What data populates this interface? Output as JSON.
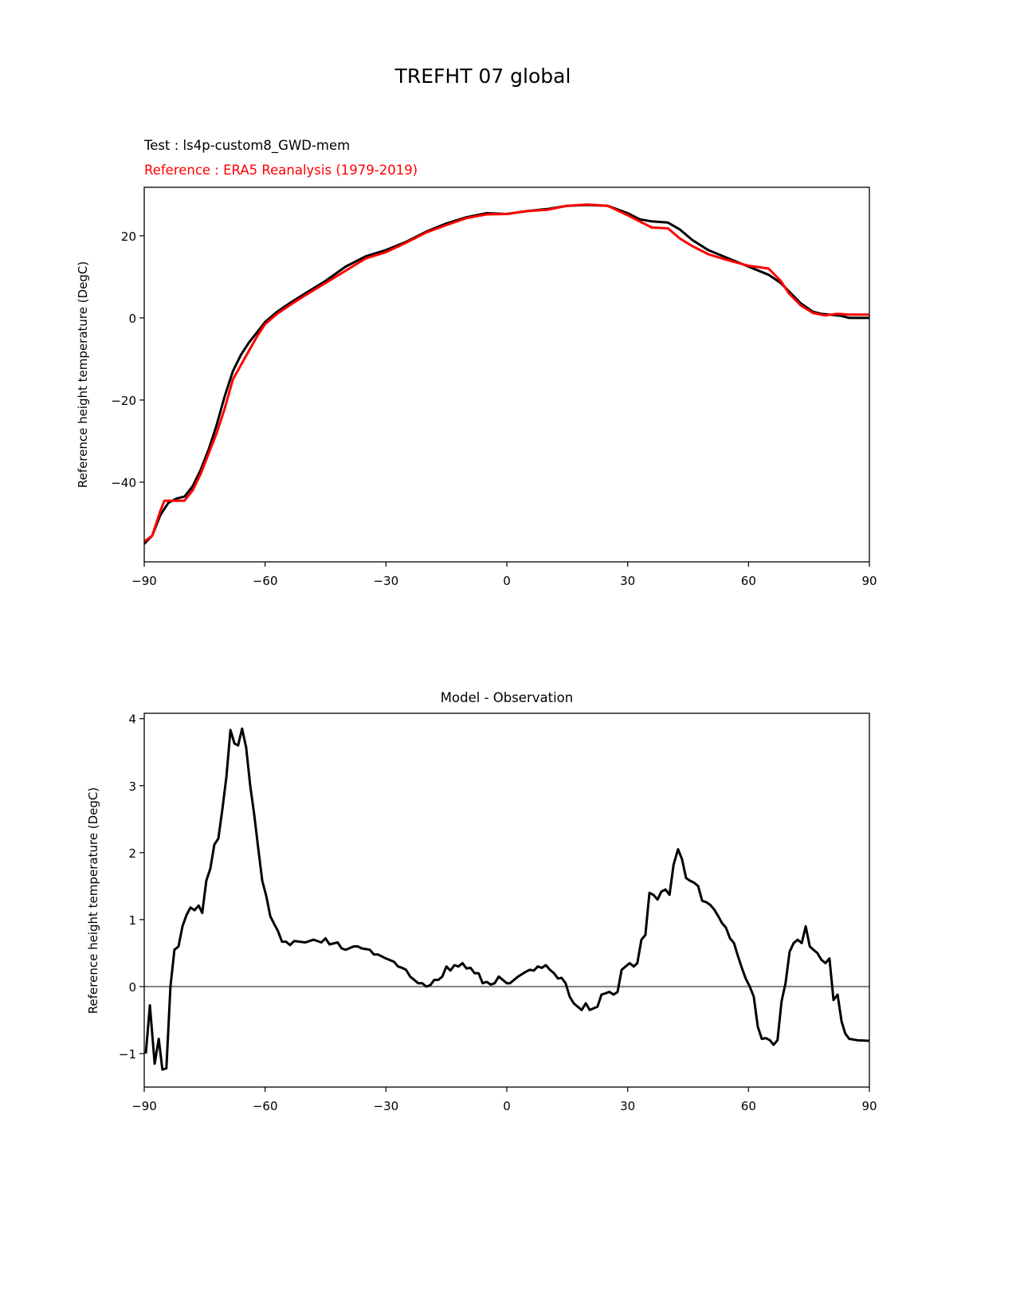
{
  "chart_data": [
    {
      "type": "line",
      "suptitle": "TREFHT 07 global",
      "title_left_test": "Test : ls4p-custom8_GWD-mem",
      "title_left_reference": "Reference : ERA5 Reanalysis (1979-2019)",
      "xlabel": "",
      "ylabel": "Reference height temperature (DegC)",
      "xlim": [
        -90,
        90
      ],
      "ylim": [
        -59.4,
        31.8
      ],
      "xticks": [
        -90,
        -60,
        -30,
        0,
        30,
        60,
        90
      ],
      "xtick_labels": [
        "−90",
        "−60",
        "−30",
        "0",
        "30",
        "60",
        "90"
      ],
      "yticks": [
        -40,
        -20,
        0,
        20
      ],
      "ytick_labels": [
        "−40",
        "−20",
        "0",
        "20"
      ],
      "series": [
        {
          "name": "Test",
          "color": "#000000",
          "x": [
            -90,
            -88,
            -86,
            -84,
            -82,
            -80,
            -78,
            -76,
            -74,
            -72,
            -70,
            -68,
            -66,
            -64,
            -62,
            -60,
            -57,
            -54,
            -50,
            -45,
            -40,
            -35,
            -30,
            -25,
            -20,
            -15,
            -10,
            -5,
            0,
            5,
            10,
            15,
            20,
            25,
            30,
            33,
            36,
            40,
            43,
            46,
            50,
            55,
            60,
            65,
            68,
            70,
            73,
            76,
            78,
            80,
            83,
            85,
            90
          ],
          "y": [
            -55,
            -53,
            -48,
            -45,
            -44,
            -43.5,
            -41,
            -37,
            -32,
            -26,
            -19,
            -13,
            -9,
            -6,
            -3.5,
            -1,
            1.5,
            3.5,
            6,
            9,
            12.5,
            15,
            16.5,
            18.5,
            21,
            23,
            24.5,
            25.5,
            25.3,
            26,
            26.5,
            27.3,
            27.5,
            27.3,
            25.5,
            24,
            23.5,
            23.2,
            21.5,
            19,
            16.5,
            14.5,
            12.5,
            10.5,
            8.5,
            6.5,
            3.5,
            1.5,
            1,
            0.8,
            0.5,
            0,
            0
          ]
        },
        {
          "name": "Reference",
          "color": "#ff0000",
          "x": [
            -90,
            -88,
            -86,
            -85,
            -83,
            -80,
            -78,
            -76,
            -74,
            -72,
            -70,
            -68,
            -66,
            -64,
            -62,
            -60,
            -57,
            -54,
            -50,
            -45,
            -40,
            -35,
            -30,
            -25,
            -20,
            -15,
            -10,
            -5,
            0,
            5,
            10,
            15,
            20,
            25,
            30,
            33,
            36,
            40,
            43,
            46,
            50,
            55,
            60,
            65,
            68,
            70,
            73,
            76,
            79,
            82,
            85,
            90
          ],
          "y": [
            -54.5,
            -53,
            -47,
            -44.5,
            -44.5,
            -44.5,
            -42,
            -38,
            -33,
            -28,
            -22,
            -15,
            -11.5,
            -8,
            -4.5,
            -1.5,
            1,
            3,
            5.5,
            8.5,
            11.5,
            14.5,
            16,
            18.3,
            20.8,
            22.6,
            24.3,
            25.2,
            25.3,
            26,
            26.3,
            27.3,
            27.6,
            27.3,
            25,
            23.5,
            22,
            21.8,
            19.3,
            17.5,
            15.5,
            14,
            12.7,
            12,
            9,
            6,
            3,
            1.2,
            0.6,
            1,
            0.8,
            0.8
          ]
        }
      ]
    },
    {
      "type": "line",
      "title": "Model - Observation",
      "xlabel": "",
      "ylabel": "Reference height temperature (DegC)",
      "xlim": [
        -90,
        90
      ],
      "ylim": [
        -1.5,
        4.08
      ],
      "xticks": [
        -90,
        -60,
        -30,
        0,
        30,
        60,
        90
      ],
      "xtick_labels": [
        "−90",
        "−60",
        "−30",
        "0",
        "30",
        "60",
        "90"
      ],
      "yticks": [
        -1,
        0,
        1,
        2,
        3,
        4
      ],
      "ytick_labels": [
        "−1",
        "0",
        "1",
        "2",
        "3",
        "4"
      ],
      "zero_line_color": "#808080",
      "series": [
        {
          "name": "Model - Observation",
          "color": "#000000",
          "x": [
            -89.6,
            -88.6,
            -87.4,
            -86.4,
            -85.5,
            -84.5,
            -83.5,
            -82.5,
            -81.5,
            -80.5,
            -79.5,
            -78.5,
            -77.5,
            -76.5,
            -75.6,
            -74.6,
            -73.6,
            -72.6,
            -71.6,
            -70.6,
            -69.6,
            -68.6,
            -67.6,
            -66.7,
            -65.7,
            -64.7,
            -63.7,
            -62.7,
            -61.7,
            -60.7,
            -59.7,
            -58.7,
            -57.7,
            -56.8,
            -55.8,
            -54.8,
            -53.8,
            -52.8,
            -50,
            -48,
            -46,
            -45,
            -44,
            -42,
            -41,
            -40,
            -38,
            -37,
            -36,
            -34,
            -33,
            -32,
            -30,
            -28,
            -27,
            -26,
            -25,
            -24,
            -22,
            -21,
            -20,
            -19,
            -18,
            -17,
            -16,
            -15,
            -14,
            -13,
            -12,
            -11,
            -10,
            -9,
            -8,
            -7,
            -6,
            -5,
            -4,
            -3,
            -2,
            0,
            0.8,
            2.8,
            4.7,
            5.7,
            6.7,
            7.7,
            8.7,
            9.7,
            10.7,
            11.7,
            12.7,
            13.6,
            14.6,
            15.6,
            16.6,
            18.6,
            19.6,
            20.6,
            22.5,
            23.5,
            25.5,
            26.5,
            27.5,
            28.5,
            30.5,
            31.5,
            32.4,
            33.4,
            34.4,
            35.4,
            36.4,
            37.4,
            38.4,
            39.4,
            40.4,
            41.4,
            42.5,
            43.5,
            44.5,
            45.5,
            46.5,
            47.5,
            48.5,
            49.5,
            50.5,
            51.5,
            52.5,
            53.4,
            54.4,
            55.4,
            56.4,
            57.4,
            58.4,
            59.3,
            60.3,
            61.3,
            62.3,
            63.3,
            64.3,
            65.3,
            66.2,
            67.2,
            68.2,
            69.2,
            70.2,
            71.2,
            72.2,
            73.2,
            74.2,
            75.2,
            76.1,
            77.1,
            78.1,
            79.1,
            80.1,
            81.1,
            82.1,
            83.1,
            84,
            85,
            87,
            90
          ],
          "y": [
            -1.0,
            -0.28,
            -1.15,
            -0.78,
            -1.24,
            -1.22,
            0,
            0.55,
            0.6,
            0.9,
            1.07,
            1.18,
            1.14,
            1.21,
            1.1,
            1.58,
            1.76,
            2.12,
            2.21,
            2.65,
            3.13,
            3.83,
            3.63,
            3.6,
            3.85,
            3.57,
            3.0,
            2.57,
            2.06,
            1.58,
            1.35,
            1.05,
            0.93,
            0.83,
            0.67,
            0.67,
            0.62,
            0.68,
            0.66,
            0.7,
            0.66,
            0.72,
            0.63,
            0.66,
            0.57,
            0.55,
            0.6,
            0.6,
            0.57,
            0.55,
            0.48,
            0.48,
            0.42,
            0.37,
            0.3,
            0.28,
            0.25,
            0.15,
            0.05,
            0.05,
            0.0,
            0.02,
            0.1,
            0.1,
            0.15,
            0.3,
            0.24,
            0.32,
            0.3,
            0.35,
            0.27,
            0.28,
            0.2,
            0.2,
            0.05,
            0.07,
            0.03,
            0.05,
            0.15,
            0.05,
            0.05,
            0.15,
            0.22,
            0.25,
            0.24,
            0.3,
            0.28,
            0.32,
            0.25,
            0.2,
            0.12,
            0.13,
            0.05,
            -0.15,
            -0.25,
            -0.35,
            -0.25,
            -0.35,
            -0.3,
            -0.12,
            -0.08,
            -0.12,
            -0.08,
            0.25,
            0.35,
            0.3,
            0.35,
            0.7,
            0.77,
            1.4,
            1.37,
            1.3,
            1.42,
            1.45,
            1.37,
            1.82,
            2.05,
            1.9,
            1.62,
            1.58,
            1.55,
            1.5,
            1.28,
            1.26,
            1.22,
            1.15,
            1.05,
            0.95,
            0.88,
            0.72,
            0.65,
            0.45,
            0.27,
            0.12,
            0.0,
            -0.15,
            -0.6,
            -0.78,
            -0.77,
            -0.8,
            -0.87,
            -0.8,
            -0.22,
            0.05,
            0.52,
            0.65,
            0.7,
            0.65,
            0.9,
            0.6,
            0.55,
            0.5,
            0.4,
            0.35,
            0.42,
            -0.2,
            -0.12,
            -0.52,
            -0.7,
            -0.78,
            -0.8,
            -0.81
          ]
        }
      ]
    }
  ]
}
